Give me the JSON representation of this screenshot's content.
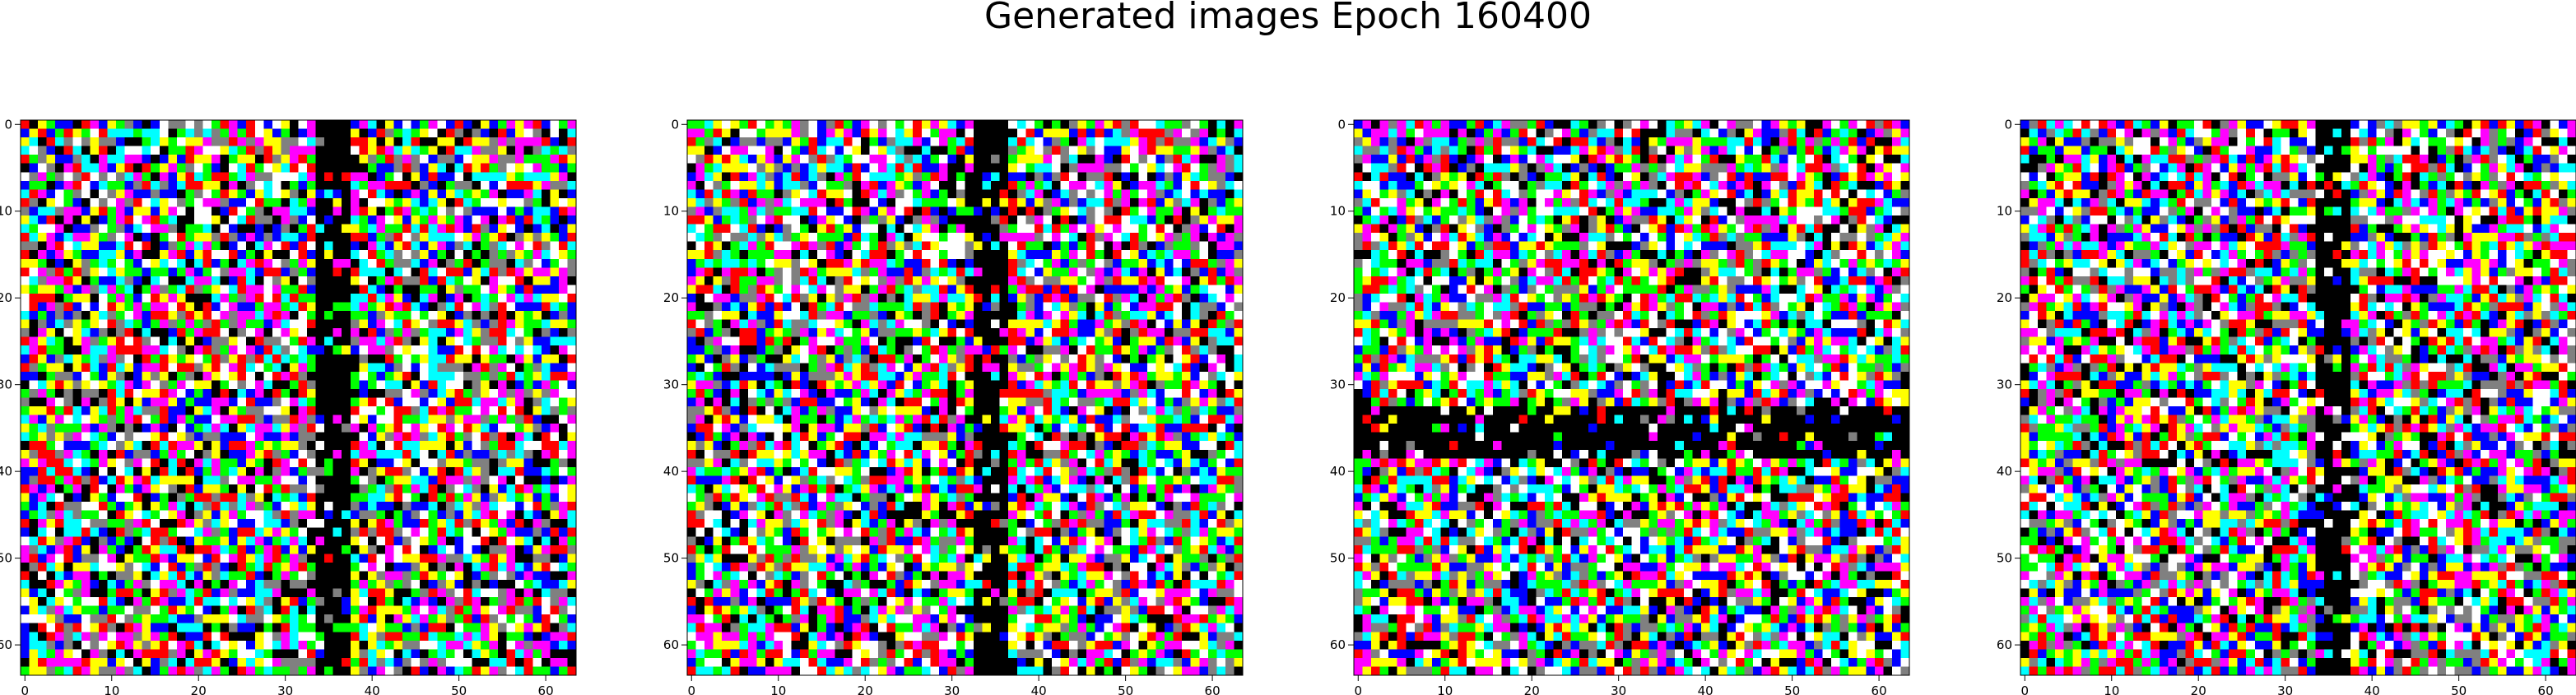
{
  "title": "Generated images Epoch 160400",
  "chart_data": {
    "type": "heatmap",
    "title": "Generated images Epoch 160400",
    "grid_size": [
      64,
      64
    ],
    "grid": false,
    "palette": [
      "#000000",
      "#ffffff",
      "#ff0000",
      "#00ff00",
      "#0000ff",
      "#ffff00",
      "#ff00ff",
      "#00ffff",
      "#808080"
    ],
    "panels": [
      {
        "xticks": [
          0,
          10,
          20,
          30,
          40,
          50,
          60
        ],
        "yticks": [
          0,
          10,
          20,
          30,
          40,
          50,
          60
        ],
        "xlim": [
          -0.5,
          63.5
        ],
        "ylim": [
          63.5,
          -0.5
        ],
        "dark_bands": [
          {
            "orientation": "vertical",
            "from": 34,
            "to": 37
          }
        ]
      },
      {
        "xticks": [
          0,
          10,
          20,
          30,
          40,
          50,
          60
        ],
        "yticks": [
          0,
          10,
          20,
          30,
          40,
          50,
          60
        ],
        "xlim": [
          -0.5,
          63.5
        ],
        "ylim": [
          63.5,
          -0.5
        ],
        "dark_bands": [
          {
            "orientation": "vertical",
            "from": 33,
            "to": 36
          }
        ]
      },
      {
        "xticks": [
          0,
          10,
          20,
          30,
          40,
          50,
          60
        ],
        "yticks": [
          0,
          10,
          20,
          30,
          40,
          50,
          60
        ],
        "xlim": [
          -0.5,
          63.5
        ],
        "ylim": [
          63.5,
          -0.5
        ],
        "dark_bands": [
          {
            "orientation": "horizontal",
            "from": 33,
            "to": 38
          }
        ]
      },
      {
        "xticks": [
          0,
          10,
          20,
          30,
          40,
          50,
          60
        ],
        "yticks": [
          0,
          10,
          20,
          30,
          40,
          50,
          60
        ],
        "xlim": [
          -0.5,
          63.5
        ],
        "ylim": [
          63.5,
          -0.5
        ],
        "dark_bands": [
          {
            "orientation": "vertical",
            "from": 34,
            "to": 37
          }
        ]
      }
    ]
  }
}
